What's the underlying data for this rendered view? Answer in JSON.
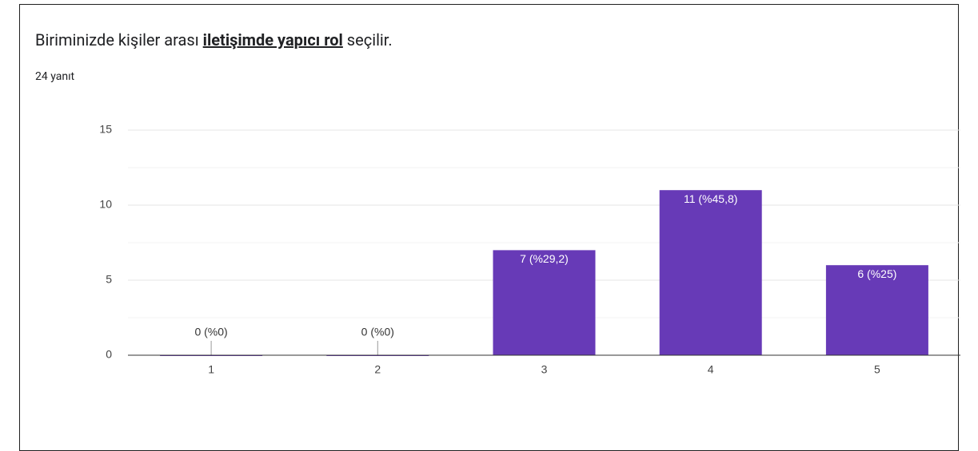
{
  "chart_data": {
    "type": "bar",
    "title": [
      "Biriminizde kişiler arası ",
      "iletişimde yapıcı rol",
      " seçilir."
    ],
    "subtitle": "24 yanıt",
    "categories": [
      "1",
      "2",
      "3",
      "4",
      "5"
    ],
    "values": [
      0,
      0,
      7,
      11,
      6
    ],
    "value_labels": [
      "0 (%0)",
      "0 (%0)",
      "7 (%29,2)",
      "11 (%45,8)",
      "6 (%25)"
    ],
    "color": "#673ab7",
    "ylim": [
      0,
      15
    ],
    "yticks": [
      0,
      5,
      10,
      15
    ],
    "minor_yticks": [
      2.5,
      7.5,
      12.5
    ],
    "grid": true
  }
}
